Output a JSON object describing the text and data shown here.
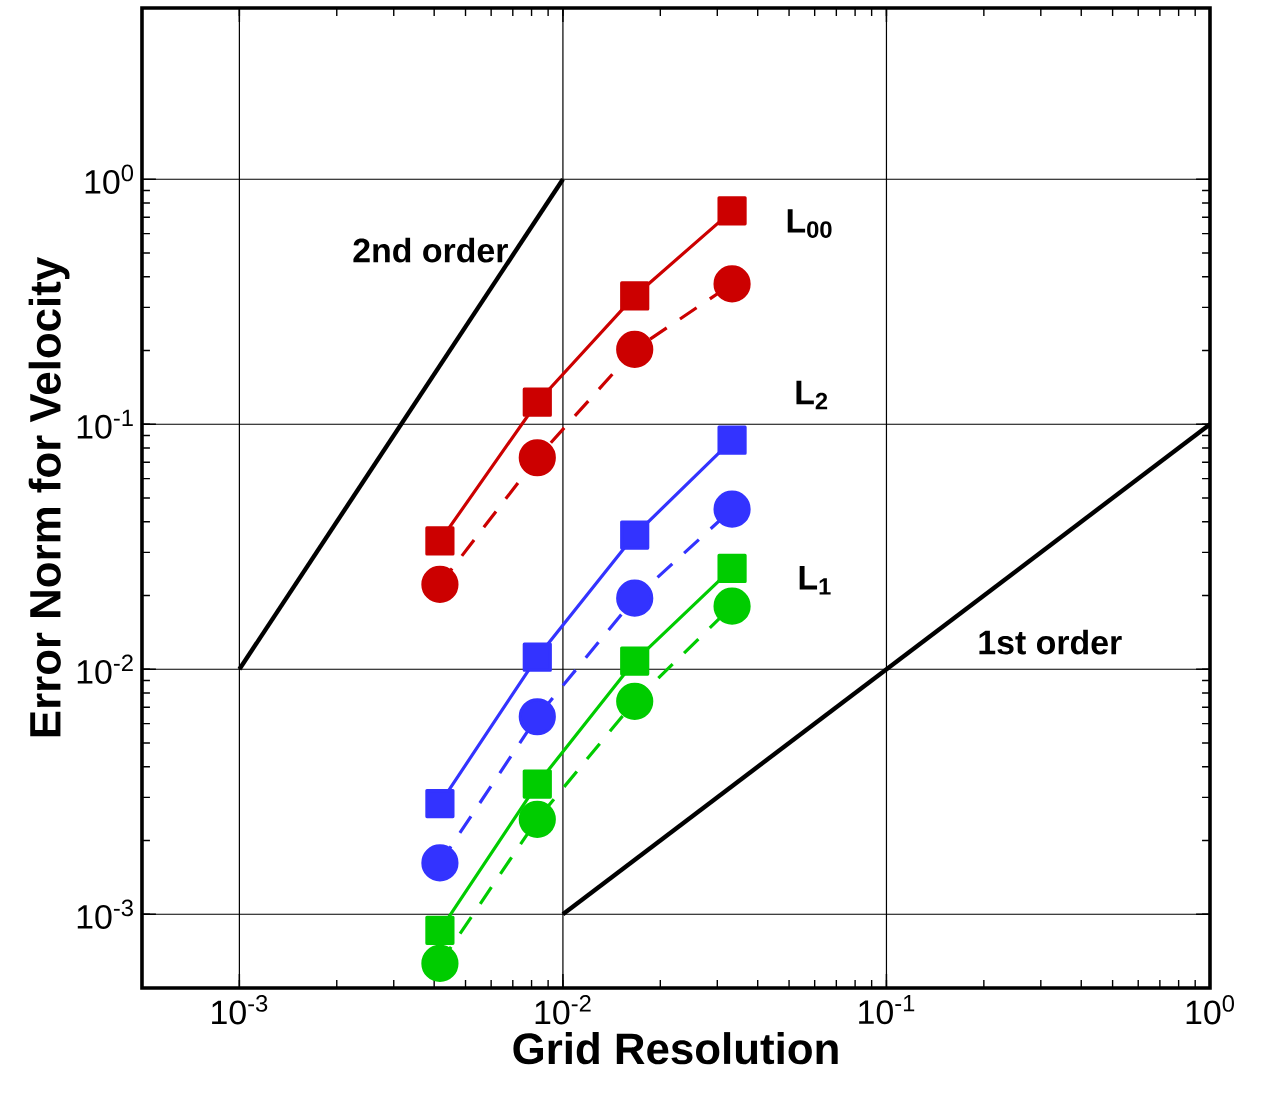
{
  "chart_data": {
    "type": "line",
    "xlabel": "Grid Resolution",
    "ylabel": "Error Norm for Velocity",
    "log": "xy",
    "grid": true,
    "x": [
      0.004167,
      0.008333,
      0.01667,
      0.03333
    ],
    "xlim": [
      0.0005,
      1
    ],
    "ylim": [
      0.0005,
      5
    ],
    "xticks": [
      {
        "value": 0.001,
        "label": "10$^{-3}$"
      },
      {
        "value": 0.01,
        "label": "10$^{-2}$"
      },
      {
        "value": 0.1,
        "label": "10$^{-1}$"
      },
      {
        "value": 1,
        "label": "10$^{0}$"
      }
    ],
    "yticks": [
      {
        "value": 0.001,
        "label": "10$^{-3}$"
      },
      {
        "value": 0.01,
        "label": "10$^{-2}$"
      },
      {
        "value": 0.1,
        "label": "10$^{-1}$"
      },
      {
        "value": 1,
        "label": "10$^{0}$"
      }
    ],
    "series": [
      {
        "color": "#cc0000",
        "marker": "square",
        "line_style": "solid",
        "values": [
          0.0334,
          0.123,
          0.334,
          0.743
        ]
      },
      {
        "color": "#cc0000",
        "marker": "circle",
        "line_style": "dashed",
        "values": [
          0.0222,
          0.073,
          0.202,
          0.374
        ]
      },
      {
        "color": "#3333ff",
        "marker": "square",
        "line_style": "solid",
        "values": [
          0.00283,
          0.0112,
          0.0353,
          0.0861
        ]
      },
      {
        "color": "#3333ff",
        "marker": "circle",
        "line_style": "dashed",
        "values": [
          0.00162,
          0.0064,
          0.0195,
          0.045
        ]
      },
      {
        "color": "#00cc00",
        "marker": "square",
        "line_style": "solid",
        "values": [
          0.00086,
          0.0034,
          0.0108,
          0.0258
        ]
      },
      {
        "color": "#00cc00",
        "marker": "circle",
        "line_style": "dashed",
        "values": [
          0.00063,
          0.00244,
          0.0074,
          0.0181
        ]
      },
      {
        "color": "#000000",
        "marker": "none",
        "line_style": "solid",
        "x": [
          0.001,
          0.01
        ],
        "values": [
          0.01,
          1
        ]
      },
      {
        "color": "#000000",
        "marker": "none",
        "line_style": "solid",
        "x": [
          0.01,
          1
        ],
        "values": [
          0.001,
          0.1
        ]
      }
    ],
    "annotations": [
      "2nd order",
      "1st order",
      "L$_{00}$",
      "L$_{2}$",
      "L$_{1}$"
    ]
  }
}
